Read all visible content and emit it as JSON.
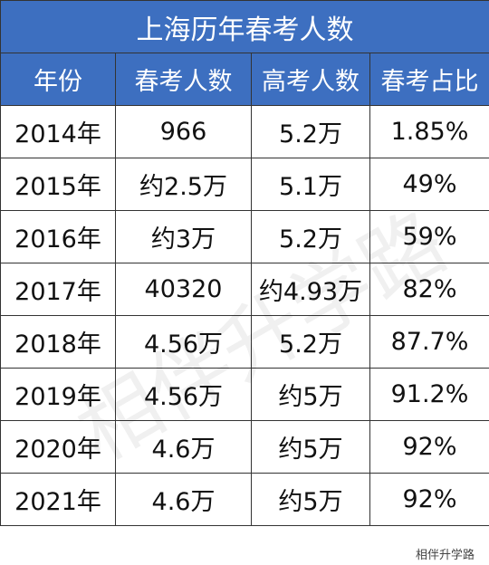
{
  "table": {
    "title": "上海历年春考人数",
    "columns": [
      "年份",
      "春考人数",
      "高考人数",
      "春考占比"
    ],
    "rows": [
      [
        "2014年",
        "966",
        "5.2万",
        "1.85%"
      ],
      [
        "2015年",
        "约2.5万",
        "5.1万",
        "49%"
      ],
      [
        "2016年",
        "约3万",
        "5.2万",
        "59%"
      ],
      [
        "2017年",
        "40320",
        "约4.93万",
        "82%"
      ],
      [
        "2018年",
        "4.56万",
        "5.2万",
        "87.7%"
      ],
      [
        "2019年",
        "4.56万",
        "约5万",
        "91.2%"
      ],
      [
        "2020年",
        "4.6万",
        "约5万",
        "92%"
      ],
      [
        "2021年",
        "4.6万",
        "约5万",
        "92%"
      ]
    ]
  },
  "watermark": "相伴升学路",
  "footer": "相伴升学路"
}
